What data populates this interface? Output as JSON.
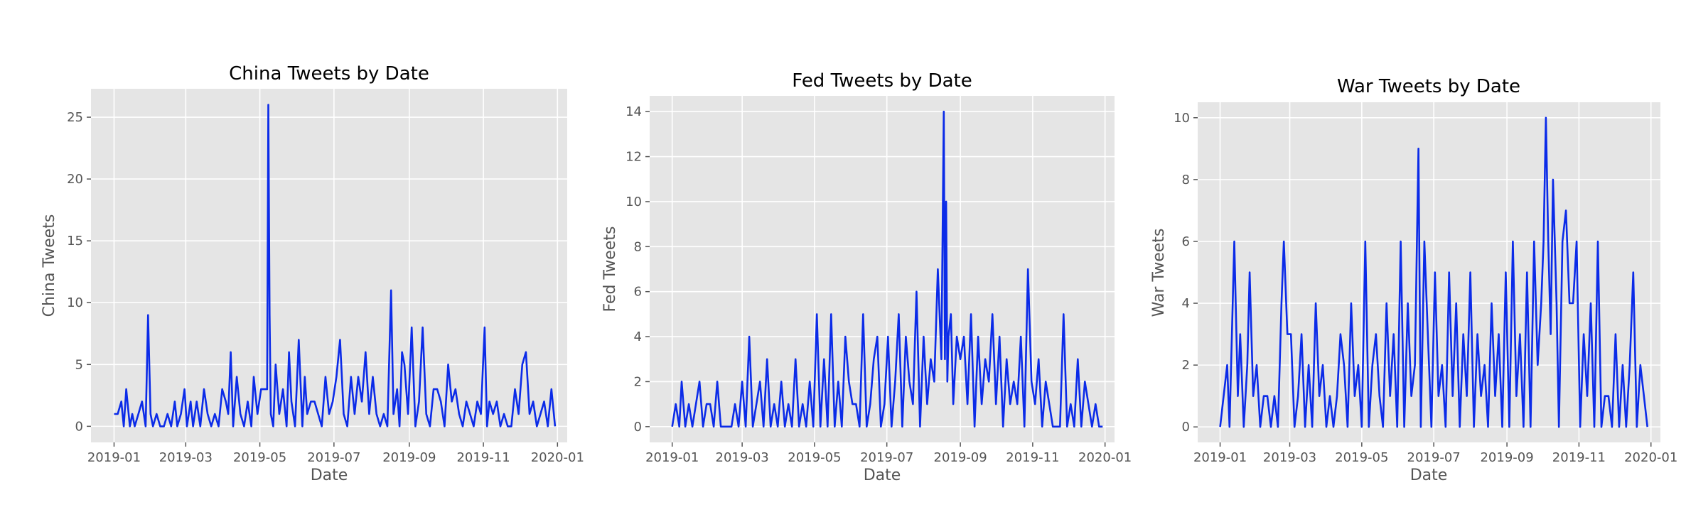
{
  "colors": {
    "series": "#0b2be8",
    "panel": "#e5e5e5",
    "grid": "#ffffff",
    "text": "#555555"
  },
  "chart_data": [
    {
      "type": "line",
      "title": "China Tweets by Date",
      "xlabel": "Date",
      "ylabel": "China Tweets",
      "grid": true,
      "xlim": [
        "2018-12-13",
        "2020-01-09"
      ],
      "ylim": [
        -1.3,
        27.3
      ],
      "xticks": [
        "2019-01",
        "2019-03",
        "2019-05",
        "2019-07",
        "2019-09",
        "2019-11",
        "2020-01"
      ],
      "yticks": [
        0,
        5,
        10,
        15,
        20,
        25
      ],
      "series": [
        {
          "x": [
            "2019-01-01",
            "2019-01-04",
            "2019-01-07",
            "2019-01-09",
            "2019-01-11",
            "2019-01-14",
            "2019-01-16",
            "2019-01-18",
            "2019-01-21",
            "2019-01-24",
            "2019-01-27",
            "2019-01-29",
            "2019-01-31",
            "2019-02-02",
            "2019-02-05",
            "2019-02-08",
            "2019-02-11",
            "2019-02-14",
            "2019-02-17",
            "2019-02-20",
            "2019-02-22",
            "2019-02-25",
            "2019-02-28",
            "2019-03-02",
            "2019-03-05",
            "2019-03-07",
            "2019-03-10",
            "2019-03-13",
            "2019-03-16",
            "2019-03-19",
            "2019-03-22",
            "2019-03-25",
            "2019-03-28",
            "2019-03-31",
            "2019-04-03",
            "2019-04-05",
            "2019-04-07",
            "2019-04-09",
            "2019-04-12",
            "2019-04-15",
            "2019-04-18",
            "2019-04-21",
            "2019-04-24",
            "2019-04-26",
            "2019-04-29",
            "2019-05-02",
            "2019-05-05",
            "2019-05-07",
            "2019-05-08",
            "2019-05-09",
            "2019-05-10",
            "2019-05-12",
            "2019-05-14",
            "2019-05-17",
            "2019-05-20",
            "2019-05-23",
            "2019-05-25",
            "2019-05-27",
            "2019-05-30",
            "2019-06-02",
            "2019-06-05",
            "2019-06-07",
            "2019-06-09",
            "2019-06-12",
            "2019-06-15",
            "2019-06-18",
            "2019-06-21",
            "2019-06-24",
            "2019-06-27",
            "2019-06-30",
            "2019-07-03",
            "2019-07-06",
            "2019-07-09",
            "2019-07-12",
            "2019-07-15",
            "2019-07-18",
            "2019-07-21",
            "2019-07-24",
            "2019-07-27",
            "2019-07-30",
            "2019-08-02",
            "2019-08-05",
            "2019-08-08",
            "2019-08-11",
            "2019-08-14",
            "2019-08-17",
            "2019-08-19",
            "2019-08-22",
            "2019-08-24",
            "2019-08-26",
            "2019-08-28",
            "2019-08-31",
            "2019-09-03",
            "2019-09-06",
            "2019-09-09",
            "2019-09-12",
            "2019-09-15",
            "2019-09-18",
            "2019-09-21",
            "2019-09-24",
            "2019-09-27",
            "2019-09-30",
            "2019-10-03",
            "2019-10-06",
            "2019-10-09",
            "2019-10-12",
            "2019-10-15",
            "2019-10-18",
            "2019-10-21",
            "2019-10-24",
            "2019-10-27",
            "2019-10-30",
            "2019-11-02",
            "2019-11-04",
            "2019-11-06",
            "2019-11-09",
            "2019-11-12",
            "2019-11-15",
            "2019-11-18",
            "2019-11-21",
            "2019-11-24",
            "2019-11-27",
            "2019-11-30",
            "2019-12-03",
            "2019-12-06",
            "2019-12-09",
            "2019-12-12",
            "2019-12-15",
            "2019-12-18",
            "2019-12-21",
            "2019-12-24",
            "2019-12-27",
            "2019-12-30"
          ],
          "y": [
            1,
            1,
            2,
            0,
            3,
            0,
            1,
            0,
            1,
            2,
            0,
            9,
            1,
            0,
            1,
            0,
            0,
            1,
            0,
            2,
            0,
            1,
            3,
            0,
            2,
            0,
            2,
            0,
            3,
            1,
            0,
            1,
            0,
            3,
            2,
            1,
            6,
            0,
            4,
            1,
            0,
            2,
            0,
            4,
            1,
            3,
            3,
            3,
            26,
            9,
            1,
            0,
            5,
            1,
            3,
            0,
            6,
            2,
            0,
            7,
            0,
            4,
            1,
            2,
            2,
            1,
            0,
            4,
            1,
            2,
            4,
            7,
            1,
            0,
            4,
            1,
            4,
            2,
            6,
            1,
            4,
            1,
            0,
            1,
            0,
            11,
            1,
            3,
            0,
            6,
            5,
            1,
            8,
            0,
            2,
            8,
            1,
            0,
            3,
            3,
            2,
            0,
            5,
            2,
            3,
            1,
            0,
            2,
            1,
            0,
            2,
            1,
            8,
            0,
            2,
            1,
            2,
            0,
            1,
            0,
            0,
            3,
            1,
            5,
            6,
            1,
            2,
            0,
            1,
            2,
            0,
            3,
            0
          ]
        }
      ]
    },
    {
      "type": "line",
      "title": "Fed Tweets by Date",
      "xlabel": "Date",
      "ylabel": "Fed Tweets",
      "grid": true,
      "xlim": [
        "2018-12-13",
        "2020-01-09"
      ],
      "ylim": [
        -0.7,
        14.7
      ],
      "xticks": [
        "2019-01",
        "2019-03",
        "2019-05",
        "2019-07",
        "2019-09",
        "2019-11",
        "2020-01"
      ],
      "yticks": [
        0,
        2,
        4,
        6,
        8,
        10,
        12,
        14
      ],
      "series": [
        {
          "x": [
            "2019-01-01",
            "2019-01-04",
            "2019-01-07",
            "2019-01-09",
            "2019-01-12",
            "2019-01-15",
            "2019-01-18",
            "2019-01-21",
            "2019-01-24",
            "2019-01-27",
            "2019-01-30",
            "2019-02-02",
            "2019-02-05",
            "2019-02-08",
            "2019-02-11",
            "2019-02-14",
            "2019-02-17",
            "2019-02-20",
            "2019-02-23",
            "2019-02-26",
            "2019-03-01",
            "2019-03-04",
            "2019-03-07",
            "2019-03-10",
            "2019-03-13",
            "2019-03-16",
            "2019-03-19",
            "2019-03-22",
            "2019-03-25",
            "2019-03-28",
            "2019-03-31",
            "2019-04-03",
            "2019-04-06",
            "2019-04-09",
            "2019-04-12",
            "2019-04-15",
            "2019-04-18",
            "2019-04-21",
            "2019-04-24",
            "2019-04-27",
            "2019-04-30",
            "2019-05-03",
            "2019-05-06",
            "2019-05-09",
            "2019-05-12",
            "2019-05-15",
            "2019-05-18",
            "2019-05-21",
            "2019-05-24",
            "2019-05-27",
            "2019-05-30",
            "2019-06-02",
            "2019-06-05",
            "2019-06-08",
            "2019-06-11",
            "2019-06-14",
            "2019-06-17",
            "2019-06-20",
            "2019-06-23",
            "2019-06-26",
            "2019-06-29",
            "2019-07-02",
            "2019-07-05",
            "2019-07-08",
            "2019-07-11",
            "2019-07-14",
            "2019-07-17",
            "2019-07-20",
            "2019-07-23",
            "2019-07-26",
            "2019-07-29",
            "2019-08-01",
            "2019-08-04",
            "2019-08-07",
            "2019-08-10",
            "2019-08-13",
            "2019-08-16",
            "2019-08-18",
            "2019-08-19",
            "2019-08-20",
            "2019-08-21",
            "2019-08-22",
            "2019-08-24",
            "2019-08-26",
            "2019-08-29",
            "2019-09-01",
            "2019-09-04",
            "2019-09-07",
            "2019-09-10",
            "2019-09-13",
            "2019-09-16",
            "2019-09-19",
            "2019-09-22",
            "2019-09-25",
            "2019-09-28",
            "2019-10-01",
            "2019-10-04",
            "2019-10-07",
            "2019-10-10",
            "2019-10-13",
            "2019-10-16",
            "2019-10-19",
            "2019-10-22",
            "2019-10-25",
            "2019-10-28",
            "2019-10-31",
            "2019-11-03",
            "2019-11-06",
            "2019-11-09",
            "2019-11-12",
            "2019-11-15",
            "2019-11-18",
            "2019-11-21",
            "2019-11-24",
            "2019-11-27",
            "2019-11-30",
            "2019-12-03",
            "2019-12-06",
            "2019-12-09",
            "2019-12-12",
            "2019-12-15",
            "2019-12-18",
            "2019-12-21",
            "2019-12-24",
            "2019-12-27",
            "2019-12-30"
          ],
          "y": [
            0,
            1,
            0,
            2,
            0,
            1,
            0,
            1,
            2,
            0,
            1,
            1,
            0,
            2,
            0,
            0,
            0,
            0,
            1,
            0,
            2,
            0,
            4,
            0,
            1,
            2,
            0,
            3,
            0,
            1,
            0,
            2,
            0,
            1,
            0,
            3,
            0,
            1,
            0,
            2,
            0,
            5,
            0,
            3,
            0,
            5,
            0,
            2,
            0,
            4,
            2,
            1,
            1,
            0,
            5,
            0,
            1,
            3,
            4,
            0,
            1,
            4,
            0,
            2,
            5,
            0,
            4,
            2,
            1,
            6,
            0,
            4,
            1,
            3,
            2,
            7,
            3,
            14,
            3,
            10,
            2,
            4,
            5,
            1,
            4,
            3,
            4,
            1,
            5,
            0,
            4,
            1,
            3,
            2,
            5,
            1,
            4,
            0,
            3,
            1,
            2,
            1,
            4,
            0,
            7,
            2,
            1,
            3,
            0,
            2,
            1,
            0,
            0,
            0,
            5,
            0,
            1,
            0,
            3,
            0,
            2,
            1,
            0,
            1,
            0,
            0
          ]
        }
      ]
    },
    {
      "type": "line",
      "title": "War Tweets by Date",
      "xlabel": "Date",
      "ylabel": "War Tweets",
      "grid": true,
      "xlim": [
        "2018-12-13",
        "2020-01-09"
      ],
      "ylim": [
        -0.5,
        10.5
      ],
      "xticks": [
        "2019-01",
        "2019-03",
        "2019-05",
        "2019-07",
        "2019-09",
        "2019-11",
        "2020-01"
      ],
      "yticks": [
        0,
        2,
        4,
        6,
        8,
        10
      ],
      "series": [
        {
          "x": [
            "2019-01-01",
            "2019-01-04",
            "2019-01-07",
            "2019-01-09",
            "2019-01-13",
            "2019-01-16",
            "2019-01-18",
            "2019-01-21",
            "2019-01-24",
            "2019-01-26",
            "2019-01-29",
            "2019-02-01",
            "2019-02-04",
            "2019-02-07",
            "2019-02-10",
            "2019-02-13",
            "2019-02-16",
            "2019-02-19",
            "2019-02-22",
            "2019-02-24",
            "2019-02-27",
            "2019-03-02",
            "2019-03-05",
            "2019-03-08",
            "2019-03-11",
            "2019-03-14",
            "2019-03-17",
            "2019-03-20",
            "2019-03-23",
            "2019-03-26",
            "2019-03-29",
            "2019-04-01",
            "2019-04-04",
            "2019-04-07",
            "2019-04-10",
            "2019-04-13",
            "2019-04-16",
            "2019-04-19",
            "2019-04-22",
            "2019-04-25",
            "2019-04-28",
            "2019-05-01",
            "2019-05-04",
            "2019-05-07",
            "2019-05-10",
            "2019-05-13",
            "2019-05-16",
            "2019-05-19",
            "2019-05-22",
            "2019-05-25",
            "2019-05-28",
            "2019-05-31",
            "2019-06-03",
            "2019-06-06",
            "2019-06-09",
            "2019-06-12",
            "2019-06-15",
            "2019-06-18",
            "2019-06-20",
            "2019-06-23",
            "2019-06-26",
            "2019-06-29",
            "2019-07-02",
            "2019-07-05",
            "2019-07-08",
            "2019-07-11",
            "2019-07-14",
            "2019-07-17",
            "2019-07-20",
            "2019-07-23",
            "2019-07-26",
            "2019-07-29",
            "2019-08-01",
            "2019-08-04",
            "2019-08-07",
            "2019-08-10",
            "2019-08-13",
            "2019-08-16",
            "2019-08-19",
            "2019-08-22",
            "2019-08-25",
            "2019-08-28",
            "2019-08-31",
            "2019-09-03",
            "2019-09-06",
            "2019-09-09",
            "2019-09-12",
            "2019-09-15",
            "2019-09-18",
            "2019-09-21",
            "2019-09-24",
            "2019-09-27",
            "2019-09-30",
            "2019-10-02",
            "2019-10-04",
            "2019-10-06",
            "2019-10-08",
            "2019-10-10",
            "2019-10-13",
            "2019-10-15",
            "2019-10-18",
            "2019-10-21",
            "2019-10-24",
            "2019-10-27",
            "2019-10-30",
            "2019-11-02",
            "2019-11-05",
            "2019-11-08",
            "2019-11-11",
            "2019-11-14",
            "2019-11-17",
            "2019-11-20",
            "2019-11-23",
            "2019-11-26",
            "2019-11-29",
            "2019-12-02",
            "2019-12-05",
            "2019-12-08",
            "2019-12-11",
            "2019-12-14",
            "2019-12-17",
            "2019-12-20",
            "2019-12-23",
            "2019-12-26",
            "2019-12-29"
          ],
          "y": [
            0,
            1,
            2,
            0,
            6,
            1,
            3,
            0,
            2,
            5,
            1,
            2,
            0,
            1,
            1,
            0,
            1,
            0,
            4,
            6,
            3,
            3,
            0,
            1,
            3,
            0,
            2,
            0,
            4,
            1,
            2,
            0,
            1,
            0,
            1,
            3,
            2,
            0,
            4,
            1,
            2,
            0,
            6,
            0,
            2,
            3,
            1,
            0,
            4,
            1,
            3,
            0,
            6,
            0,
            4,
            1,
            2,
            9,
            0,
            6,
            3,
            0,
            5,
            1,
            2,
            0,
            5,
            1,
            4,
            0,
            3,
            1,
            5,
            0,
            3,
            1,
            2,
            0,
            4,
            1,
            3,
            0,
            5,
            0,
            6,
            1,
            3,
            0,
            5,
            0,
            6,
            2,
            4,
            6,
            10,
            6,
            3,
            8,
            4,
            0,
            6,
            7,
            4,
            4,
            6,
            0,
            3,
            1,
            4,
            0,
            6,
            0,
            1,
            1,
            0,
            3,
            0,
            2,
            0,
            2,
            5,
            0,
            2,
            1,
            0
          ]
        }
      ]
    }
  ]
}
